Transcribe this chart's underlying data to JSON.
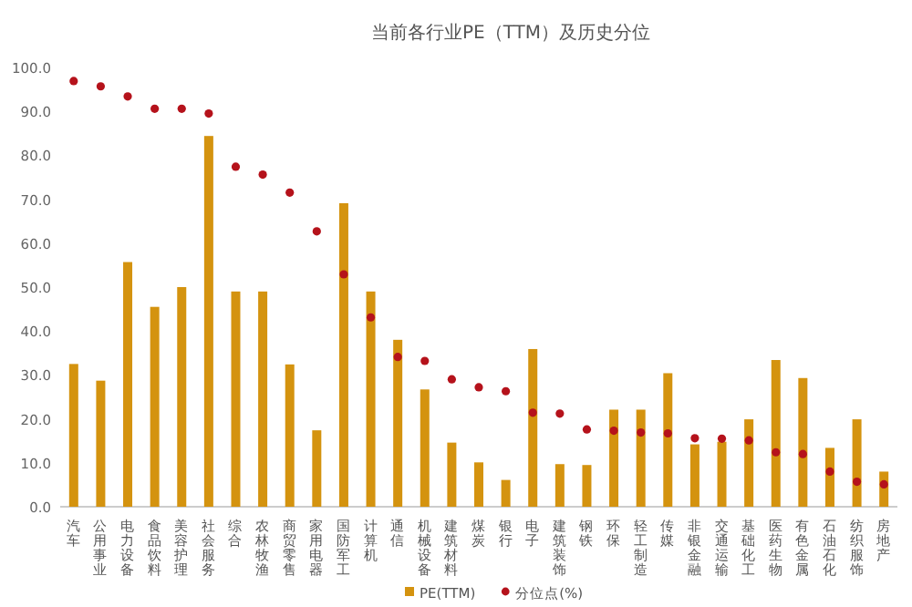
{
  "chart_data": {
    "type": "bar",
    "title": "当前各行业PE（TTM）及历史分位",
    "categories": [
      "汽车",
      "公用事业",
      "电力设备",
      "食品饮料",
      "美容护理",
      "社会服务",
      "综合",
      "农林牧渔",
      "商贸零售",
      "家用电器",
      "国防军工",
      "计算机",
      "通信",
      "机械设备",
      "建筑材料",
      "煤炭",
      "银行",
      "电子",
      "建筑装饰",
      "钢铁",
      "环保",
      "轻工制造",
      "传媒",
      "非银金融",
      "交通运输",
      "基础化工",
      "医药生物",
      "有色金属",
      "石油石化",
      "纺织服饰",
      "房地产"
    ],
    "series": [
      {
        "name": "PE(TTM)",
        "color": "#d4930f",
        "values": [
          32.5,
          28.7,
          55.7,
          45.5,
          50,
          84.4,
          49,
          49,
          32.4,
          17.4,
          69.1,
          49,
          38,
          26.7,
          14.6,
          10.1,
          6.1,
          35.9,
          9.7,
          9.5,
          22.1,
          22.1,
          30.4,
          14.2,
          14.8,
          19.9,
          33.4,
          29.3,
          13.4,
          19.9,
          8.0
        ]
      },
      {
        "name": "分位点(%)",
        "type": "scatter",
        "marker": "circle",
        "color": "#b5121b",
        "values": [
          96.9,
          95.7,
          93.4,
          90.6,
          90.6,
          89.5,
          77.4,
          75.6,
          71.5,
          62.7,
          52.9,
          43.1,
          34.1,
          33.2,
          29.0,
          27.2,
          26.3,
          21.4,
          21.2,
          17.6,
          17.3,
          16.9,
          16.7,
          15.6,
          15.5,
          15.1,
          12.4,
          12.0,
          8.0,
          5.7,
          5.1
        ]
      }
    ],
    "ylim": [
      0,
      100
    ],
    "yticks": [
      {
        "value": 0,
        "label": "0.0"
      },
      {
        "value": 10,
        "label": "10.0"
      },
      {
        "value": 20,
        "label": "20.0"
      },
      {
        "value": 30,
        "label": "30.0"
      },
      {
        "value": 40,
        "label": "40.0"
      },
      {
        "value": 50,
        "label": "50.0"
      },
      {
        "value": 60,
        "label": "60.0"
      },
      {
        "value": 70,
        "label": "70.0"
      },
      {
        "value": 80,
        "label": "80.0"
      },
      {
        "value": 90,
        "label": "90.0"
      },
      {
        "value": 100,
        "label": "100.0"
      }
    ],
    "legend": "bottom"
  }
}
